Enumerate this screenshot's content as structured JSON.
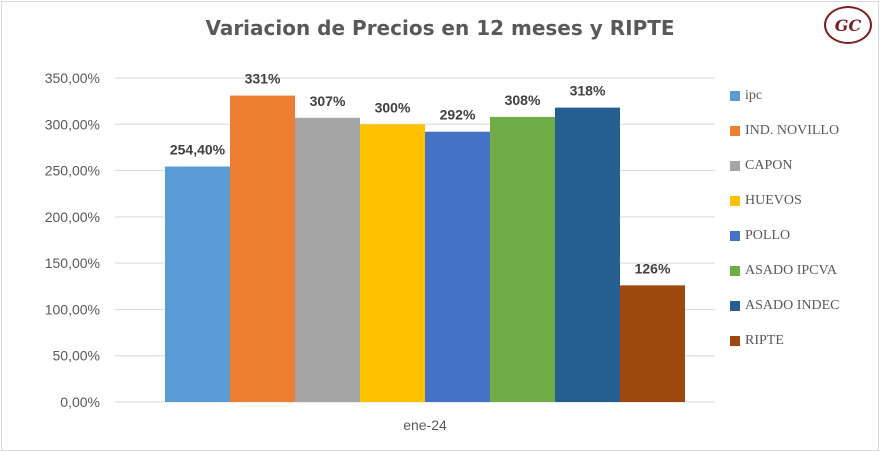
{
  "logo": {
    "text": "GC"
  },
  "chart_data": {
    "type": "bar",
    "title": "Variacion de Precios en 12 meses y RIPTE",
    "xlabel": "",
    "ylabel": "",
    "categories": [
      "ene-24"
    ],
    "ylim": [
      0,
      350
    ],
    "y_ticks": [
      "0,00%",
      "50,00%",
      "100,00%",
      "150,00%",
      "200,00%",
      "250,00%",
      "300,00%",
      "350,00%"
    ],
    "grid": "horizontal",
    "legend_position": "right",
    "series": [
      {
        "name": "ipc",
        "values": [
          254.4
        ],
        "label": "254,40%",
        "color": "#5b9bd5"
      },
      {
        "name": "IND. NOVILLO",
        "values": [
          331
        ],
        "label": "331%",
        "color": "#ed7d31"
      },
      {
        "name": "CAPON",
        "values": [
          307
        ],
        "label": "307%",
        "color": "#a5a5a5"
      },
      {
        "name": "HUEVOS",
        "values": [
          300
        ],
        "label": "300%",
        "color": "#ffc000"
      },
      {
        "name": "POLLO",
        "values": [
          292
        ],
        "label": "292%",
        "color": "#4472c4"
      },
      {
        "name": "ASADO IPCVA",
        "values": [
          308
        ],
        "label": "308%",
        "color": "#70ad47"
      },
      {
        "name": "ASADO INDEC",
        "values": [
          318
        ],
        "label": "318%",
        "color": "#255e91"
      },
      {
        "name": "RIPTE",
        "values": [
          126
        ],
        "label": "126%",
        "color": "#9e480e"
      }
    ]
  }
}
